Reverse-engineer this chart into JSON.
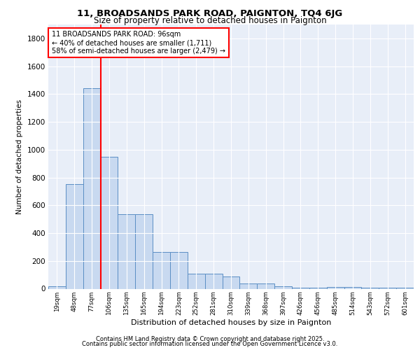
{
  "title1": "11, BROADSANDS PARK ROAD, PAIGNTON, TQ4 6JG",
  "title2": "Size of property relative to detached houses in Paignton",
  "xlabel": "Distribution of detached houses by size in Paignton",
  "ylabel": "Number of detached properties",
  "bar_labels": [
    "19sqm",
    "48sqm",
    "77sqm",
    "106sqm",
    "135sqm",
    "165sqm",
    "194sqm",
    "223sqm",
    "252sqm",
    "281sqm",
    "310sqm",
    "339sqm",
    "368sqm",
    "397sqm",
    "426sqm",
    "456sqm",
    "485sqm",
    "514sqm",
    "543sqm",
    "572sqm",
    "601sqm"
  ],
  "bar_values": [
    20,
    750,
    1440,
    950,
    535,
    535,
    265,
    265,
    110,
    110,
    90,
    40,
    40,
    20,
    10,
    10,
    15,
    15,
    10,
    10,
    10
  ],
  "bar_color": "#c8d9f0",
  "bar_edge_color": "#5b8ec4",
  "vline_x_idx": 2.5,
  "vline_color": "red",
  "annotation_text": "11 BROADSANDS PARK ROAD: 96sqm\n← 40% of detached houses are smaller (1,711)\n58% of semi-detached houses are larger (2,479) →",
  "annotation_box_color": "white",
  "annotation_box_edge_color": "red",
  "background_color": "#e8eef8",
  "grid_color": "white",
  "ylim": [
    0,
    1900
  ],
  "yticks": [
    0,
    200,
    400,
    600,
    800,
    1000,
    1200,
    1400,
    1600,
    1800
  ],
  "footer1": "Contains HM Land Registry data © Crown copyright and database right 2025.",
  "footer2": "Contains public sector information licensed under the Open Government Licence v3.0."
}
